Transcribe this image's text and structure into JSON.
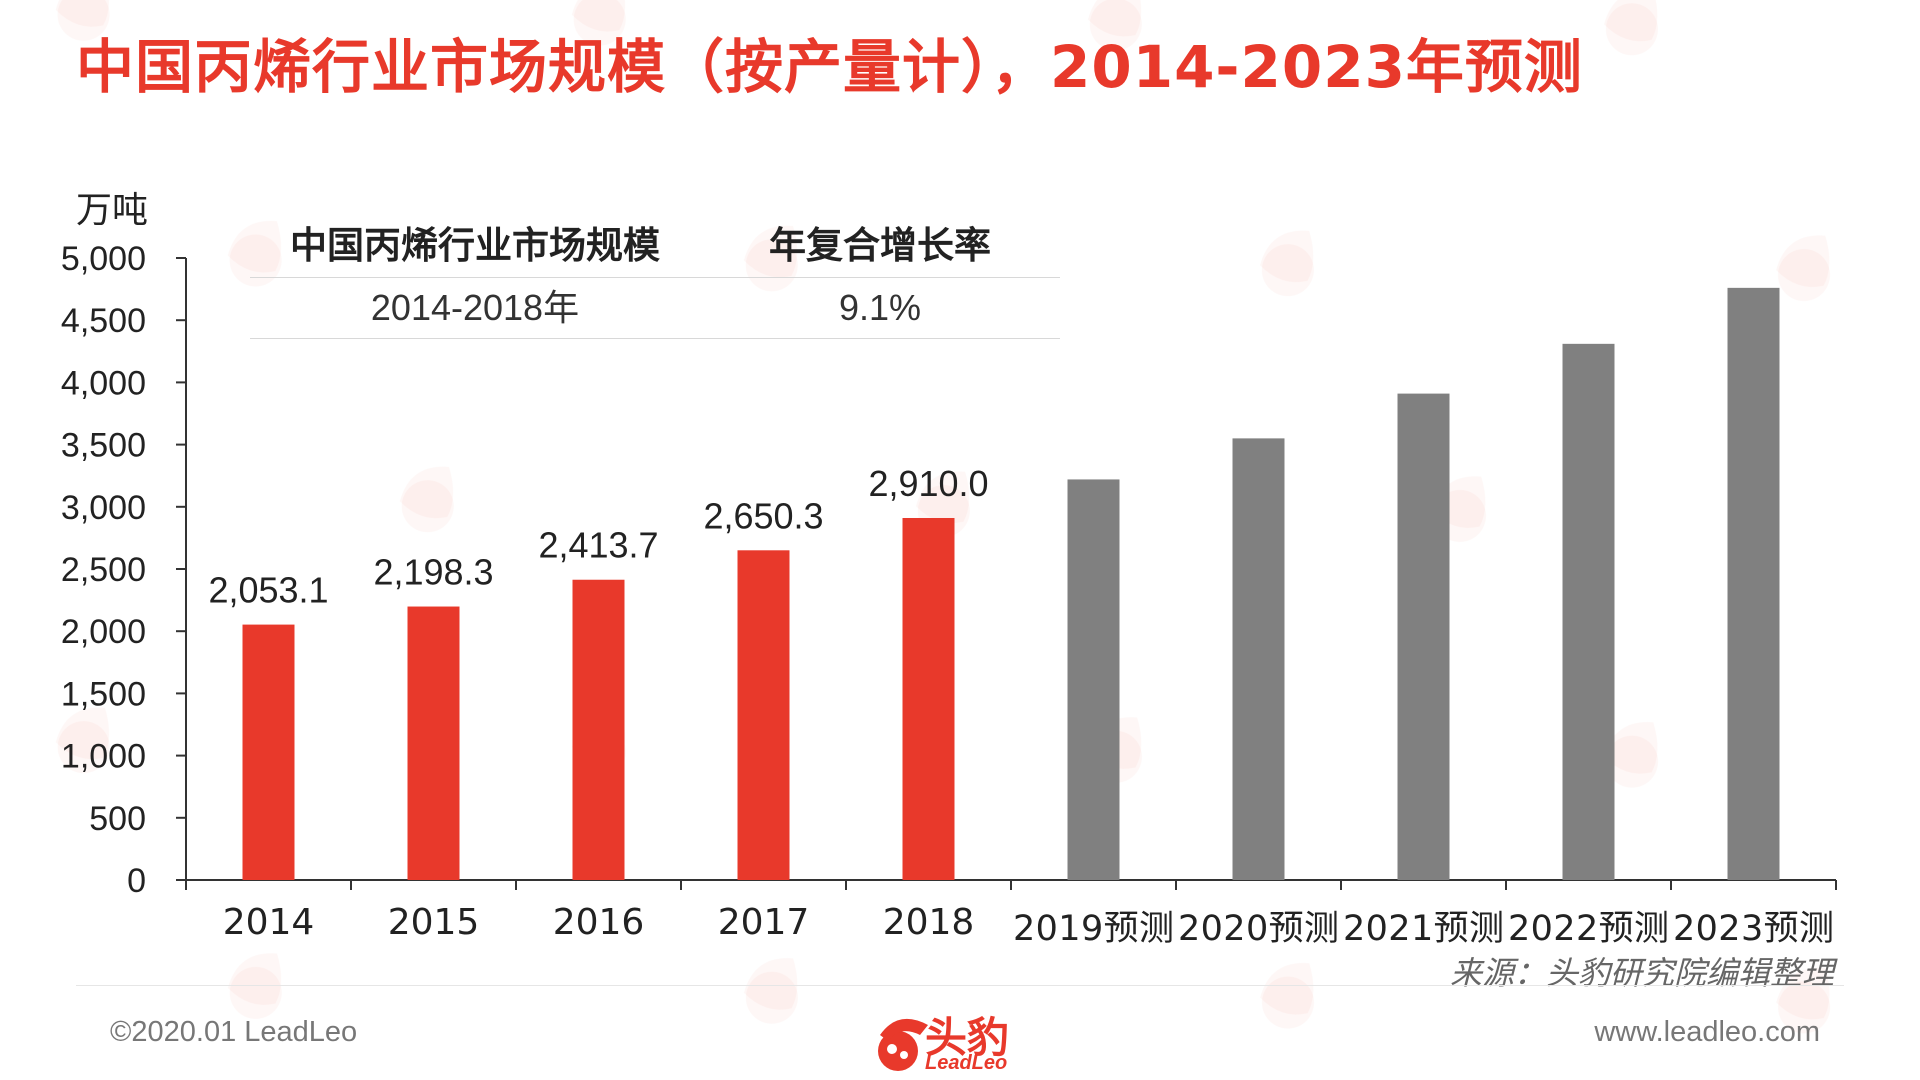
{
  "page": {
    "title": "中国丙烯行业市场规模（按产量计），2014-2023年预测",
    "source": "来源：头豹研究院编辑整理",
    "copyright": "©2020.01 LeadLeo",
    "website": "www.leadleo.com",
    "logo_text": "头豹",
    "logo_sub": "LeadLeo"
  },
  "colors": {
    "actual": "#e8392b",
    "forecast": "#808080",
    "title": "#e8392b"
  },
  "table": {
    "headers": [
      "中国丙烯行业市场规模",
      "年复合增长率"
    ],
    "rows": [
      [
        "2014-2018年",
        "9.1%"
      ]
    ]
  },
  "chart_data": {
    "type": "bar",
    "ylabel": "万吨",
    "ylim": [
      0,
      5000
    ],
    "yticks": [
      0,
      500,
      1000,
      1500,
      2000,
      2500,
      3000,
      3500,
      4000,
      4500,
      5000
    ],
    "ytick_labels": [
      "0",
      "500",
      "1,000",
      "1,500",
      "2,000",
      "2,500",
      "3,000",
      "3,500",
      "4,000",
      "4,500",
      "5,000"
    ],
    "categories": [
      "2014",
      "2015",
      "2016",
      "2017",
      "2018",
      "2019预测",
      "2020预测",
      "2021预测",
      "2022预测",
      "2023预测"
    ],
    "values": [
      2053.1,
      2198.3,
      2413.7,
      2650.3,
      2910.0,
      3220,
      3550,
      3910,
      4310,
      4760
    ],
    "data_labels": [
      "2,053.1",
      "2,198.3",
      "2,413.7",
      "2,650.3",
      "2,910.0",
      "",
      "",
      "",
      "",
      ""
    ],
    "forecast_from_index": 5,
    "grid": false,
    "legend": "none"
  }
}
